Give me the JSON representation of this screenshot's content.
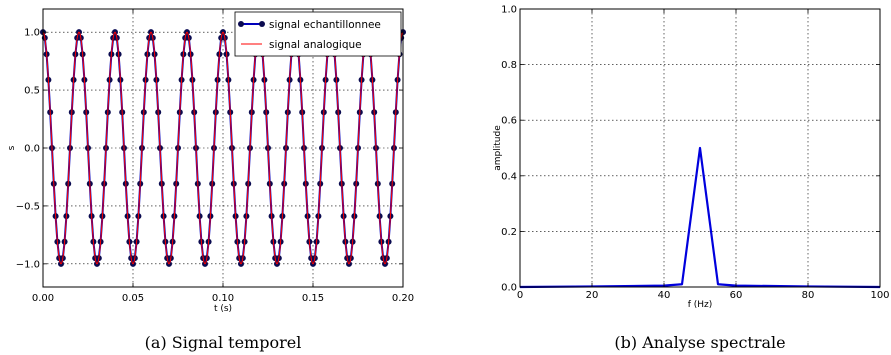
{
  "chart_data": [
    {
      "type": "line",
      "caption": "(a) Signal temporel",
      "xlabel": "t (s)",
      "ylabel": "s",
      "xlim": [
        0.0,
        0.2
      ],
      "ylim": [
        -1.2,
        1.2
      ],
      "xticks": [
        "0.00",
        "0.05",
        "0.10",
        "0.15",
        "0.20"
      ],
      "yticks": [
        "1.0",
        "0.5",
        "0.0",
        "−0.5",
        "−1.0"
      ],
      "grid": true,
      "legend_position": "top-right",
      "signal": {
        "function": "cos",
        "frequency_hz": 50,
        "amplitude": 1.0,
        "sample_step_s": 0.001
      },
      "series": [
        {
          "name": "signal echantillonnee",
          "style": "line-with-markers",
          "color": "#0000bb",
          "marker_color": "#0a0a50"
        },
        {
          "name": "signal analogique",
          "style": "line",
          "color": "#ff0000"
        }
      ]
    },
    {
      "type": "line",
      "caption": "(b) Analyse spectrale",
      "xlabel": "f (Hz)",
      "ylabel": "amplitude",
      "xlim": [
        0,
        100
      ],
      "ylim": [
        0.0,
        1.0
      ],
      "xticks": [
        "0",
        "20",
        "40",
        "60",
        "80",
        "100"
      ],
      "yticks": [
        "1.0",
        "0.8",
        "0.6",
        "0.4",
        "0.2",
        "0.0"
      ],
      "grid": true,
      "series": [
        {
          "color": "#0000dd",
          "x": [
            0,
            20,
            40,
            45,
            50,
            55,
            60,
            80,
            100
          ],
          "y": [
            0.0,
            0.002,
            0.005,
            0.01,
            0.5,
            0.01,
            0.005,
            0.002,
            0.0
          ]
        }
      ]
    }
  ]
}
